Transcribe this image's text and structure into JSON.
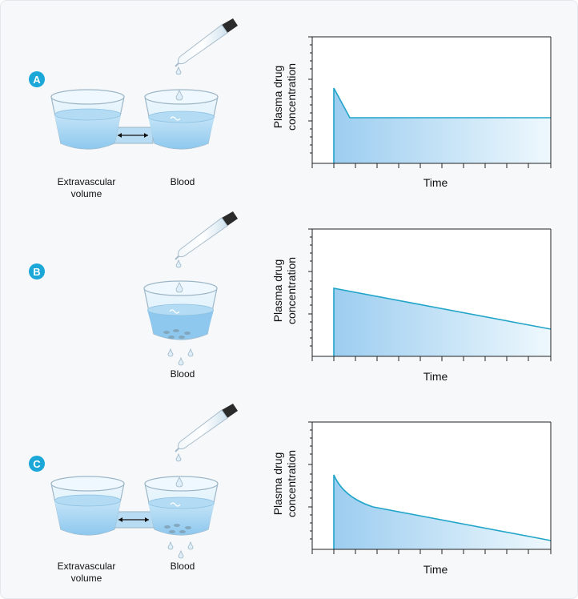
{
  "panels": [
    {
      "letter": "A",
      "left_label": [
        "Extravascular",
        "volume"
      ],
      "right_label": "Blood",
      "ylabel": [
        "Plasma drug",
        "concentration"
      ],
      "xlabel": "Time"
    },
    {
      "letter": "B",
      "right_label": "Blood",
      "ylabel": [
        "Plasma drug",
        "concentration"
      ],
      "xlabel": "Time"
    },
    {
      "letter": "C",
      "left_label": [
        "Extravascular",
        "volume"
      ],
      "right_label": "Blood",
      "ylabel": [
        "Plasma drug",
        "concentration"
      ],
      "xlabel": "Time"
    }
  ],
  "colors": {
    "accent": "#1ba8d9",
    "curve": "#22a5c9",
    "fill": "#a6d4f2",
    "water": "#9dd0f0"
  }
}
